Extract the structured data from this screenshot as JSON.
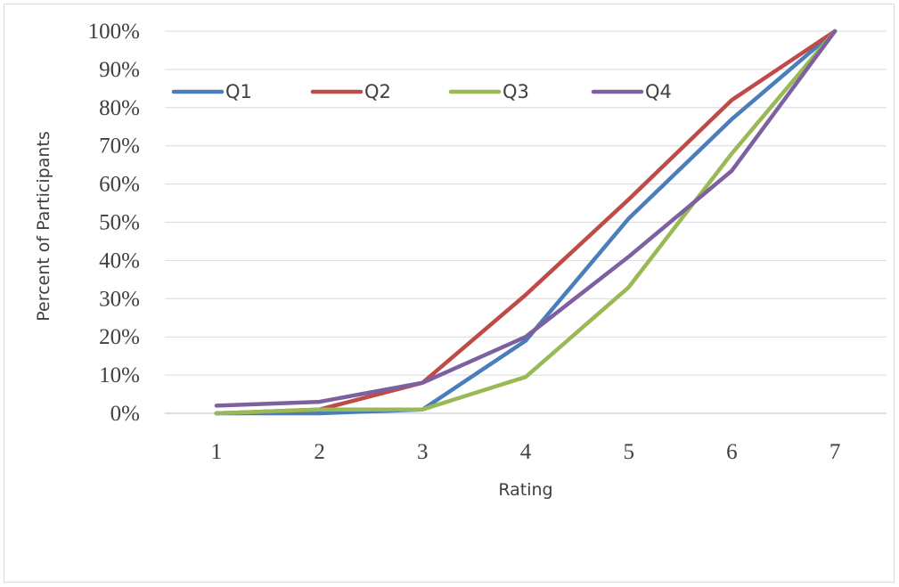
{
  "chart_data": {
    "type": "line",
    "title": "",
    "xlabel": "Rating",
    "ylabel": "Percent of Participants",
    "x": [
      1,
      2,
      3,
      4,
      5,
      6,
      7
    ],
    "categories": [
      "1",
      "2",
      "3",
      "4",
      "5",
      "6",
      "7"
    ],
    "ylim": [
      0,
      1
    ],
    "yticks": [
      0,
      0.1,
      0.2,
      0.3,
      0.4,
      0.5,
      0.6,
      0.7,
      0.8,
      0.9,
      1.0
    ],
    "ytick_labels": [
      "0%",
      "10%",
      "20%",
      "30%",
      "40%",
      "50%",
      "60%",
      "70%",
      "80%",
      "90%",
      "100%"
    ],
    "grid": true,
    "legend": "top-left",
    "series": [
      {
        "name": "Q1",
        "color": "#4a7ebb",
        "values": [
          0.0,
          0.0,
          0.01,
          0.19,
          0.51,
          0.77,
          1.0
        ]
      },
      {
        "name": "Q2",
        "color": "#be4b48",
        "values": [
          0.0,
          0.01,
          0.08,
          0.31,
          0.56,
          0.82,
          1.0
        ]
      },
      {
        "name": "Q3",
        "color": "#98b954",
        "values": [
          0.0,
          0.01,
          0.01,
          0.095,
          0.33,
          0.68,
          1.0
        ]
      },
      {
        "name": "Q4",
        "color": "#7d60a0",
        "values": [
          0.02,
          0.03,
          0.08,
          0.2,
          0.41,
          0.635,
          1.0
        ]
      }
    ]
  }
}
